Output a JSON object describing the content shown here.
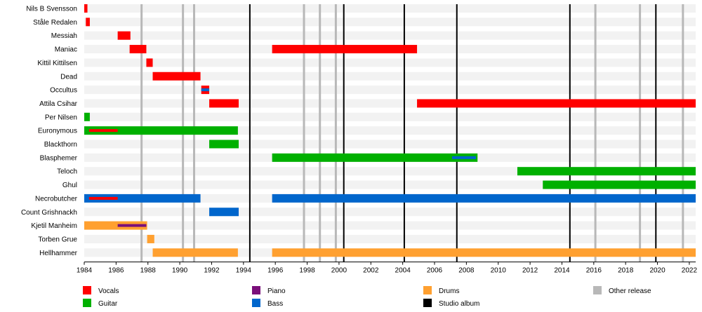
{
  "chart_data": {
    "type": "timeline",
    "x_range": [
      1984,
      2022.4
    ],
    "x_ticks": [
      "1984",
      "1986",
      "1988",
      "1990",
      "1992",
      "1994",
      "1996",
      "1998",
      "2000",
      "2002",
      "2004",
      "2006",
      "2008",
      "2010",
      "2012",
      "2014",
      "2016",
      "2018",
      "2020",
      "2022"
    ],
    "tick_values": [
      1984,
      1986,
      1988,
      1990,
      1992,
      1994,
      1996,
      1998,
      2000,
      2002,
      2004,
      2006,
      2008,
      2010,
      2012,
      2014,
      2016,
      2018,
      2020,
      2022
    ],
    "members": [
      "Nils B Svensson",
      "Ståle Redalen",
      "Messiah",
      "Maniac",
      "Kittil Kittilsen",
      "Dead",
      "Occultus",
      "Attila Csihar",
      "Per Nilsen",
      "Euronymous",
      "Blackthorn",
      "Blasphemer",
      "Teloch",
      "Ghul",
      "Necrobutcher",
      "Count Grishnackh",
      "Kjetil Manheim",
      "Torben Grue",
      "Hellhammer"
    ],
    "colors": {
      "Vocals": "#ff0000",
      "Guitar": "#00b000",
      "Piano": "#7a0f7a",
      "Bass": "#0066cc",
      "Drums": "#ffa030",
      "Studio album": "#000000",
      "Other release": "#b8b8b8"
    },
    "legend": [
      {
        "label": "Vocals",
        "role": "Vocals"
      },
      {
        "label": "Guitar",
        "role": "Guitar"
      },
      {
        "label": "Piano",
        "role": "Piano"
      },
      {
        "label": "Bass",
        "role": "Bass"
      },
      {
        "label": "Drums",
        "role": "Drums"
      },
      {
        "label": "Studio album",
        "role": "Studio album"
      },
      {
        "label": "Other release",
        "role": "Other release"
      }
    ],
    "bars": [
      {
        "member": 0,
        "role": "Vocals",
        "start": 1984.0,
        "end": 1984.2
      },
      {
        "member": 1,
        "role": "Vocals",
        "start": 1984.1,
        "end": 1984.35
      },
      {
        "member": 2,
        "role": "Vocals",
        "start": 1986.1,
        "end": 1986.9
      },
      {
        "member": 3,
        "role": "Vocals",
        "start": 1986.85,
        "end": 1987.9
      },
      {
        "member": 3,
        "role": "Vocals",
        "start": 1995.8,
        "end": 2004.9
      },
      {
        "member": 4,
        "role": "Vocals",
        "start": 1987.9,
        "end": 1988.3
      },
      {
        "member": 5,
        "role": "Vocals",
        "start": 1988.3,
        "end": 1991.3
      },
      {
        "member": 6,
        "role": "Vocals",
        "start": 1991.35,
        "end": 1991.85
      },
      {
        "member": 6,
        "role": "Bass",
        "start": 1991.35,
        "end": 1991.85,
        "thin": true
      },
      {
        "member": 7,
        "role": "Vocals",
        "start": 1991.85,
        "end": 1993.7
      },
      {
        "member": 7,
        "role": "Vocals",
        "start": 2004.9,
        "end": 2022.4
      },
      {
        "member": 8,
        "role": "Guitar",
        "start": 1984.0,
        "end": 1984.35
      },
      {
        "member": 9,
        "role": "Guitar",
        "start": 1984.0,
        "end": 1993.65
      },
      {
        "member": 9,
        "role": "Vocals",
        "start": 1984.3,
        "end": 1986.1,
        "thin": true
      },
      {
        "member": 10,
        "role": "Guitar",
        "start": 1991.85,
        "end": 1993.7
      },
      {
        "member": 11,
        "role": "Guitar",
        "start": 1995.8,
        "end": 2008.7
      },
      {
        "member": 11,
        "role": "Bass",
        "start": 2007.1,
        "end": 2008.6,
        "thin": true
      },
      {
        "member": 12,
        "role": "Guitar",
        "start": 2011.2,
        "end": 2022.4
      },
      {
        "member": 13,
        "role": "Guitar",
        "start": 2012.8,
        "end": 2022.4
      },
      {
        "member": 14,
        "role": "Bass",
        "start": 1984.0,
        "end": 1991.3
      },
      {
        "member": 14,
        "role": "Vocals",
        "start": 1984.3,
        "end": 1986.1,
        "thin": true
      },
      {
        "member": 14,
        "role": "Bass",
        "start": 1995.8,
        "end": 2022.4
      },
      {
        "member": 15,
        "role": "Bass",
        "start": 1991.85,
        "end": 1993.7
      },
      {
        "member": 16,
        "role": "Drums",
        "start": 1984.0,
        "end": 1987.95
      },
      {
        "member": 16,
        "role": "Piano",
        "start": 1986.1,
        "end": 1987.9,
        "thin": true
      },
      {
        "member": 17,
        "role": "Drums",
        "start": 1987.95,
        "end": 1988.4
      },
      {
        "member": 18,
        "role": "Drums",
        "start": 1988.3,
        "end": 1993.65
      },
      {
        "member": 18,
        "role": "Drums",
        "start": 1995.8,
        "end": 2022.4
      }
    ],
    "studio_albums": [
      1994.4,
      2000.3,
      2004.1,
      2007.4,
      2014.5,
      2019.9
    ],
    "other_releases": [
      1987.6,
      1990.2,
      1990.9,
      1997.8,
      1998.8,
      1999.8,
      2016.1,
      2018.9,
      2021.6
    ],
    "grid": true,
    "legend_position": "bottom"
  }
}
